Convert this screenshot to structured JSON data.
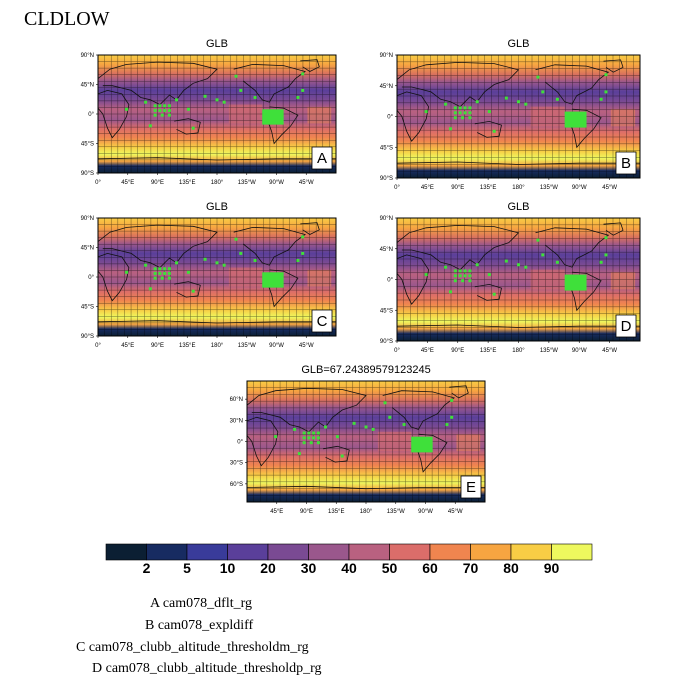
{
  "title": "CLDLOW",
  "panels": [
    {
      "id": "A",
      "title": "GLB"
    },
    {
      "id": "B",
      "title": "GLB"
    },
    {
      "id": "C",
      "title": "GLB"
    },
    {
      "id": "D",
      "title": "GLB"
    },
    {
      "id": "E",
      "title": "GLB=67.24389579123245"
    }
  ],
  "lat_ticks_full": [
    "90°N",
    "45°N",
    "0°",
    "45°S",
    "90°S"
  ],
  "lon_ticks_full": [
    "0°",
    "45°E",
    "90°E",
    "135°E",
    "180°",
    "135°W",
    "90°W",
    "45°W"
  ],
  "lat_ticks_e": [
    "60°N",
    "30°N",
    "0°",
    "30°S",
    "60°S"
  ],
  "lon_ticks_e": [
    "45°E",
    "90°E",
    "135°E",
    "180°",
    "135°W",
    "90°W",
    "45°W"
  ],
  "colorbar": {
    "labels": [
      "2",
      "5",
      "10",
      "20",
      "30",
      "40",
      "50",
      "60",
      "70",
      "80",
      "90"
    ],
    "colors": [
      "#0b1f33",
      "#172b61",
      "#393b9a",
      "#5a3f9a",
      "#7a4a93",
      "#9a578c",
      "#b96180",
      "#db6d6a",
      "#f0854f",
      "#f7a541",
      "#f8cd45",
      "#eef85e"
    ]
  },
  "legend": [
    "A  cam078_dflt_rg",
    "B  cam078_expldiff",
    "C  cam078_clubb_altitude_thresholdm_rg",
    "D  cam078_clubb_altitude_thresholdp_rg"
  ]
}
